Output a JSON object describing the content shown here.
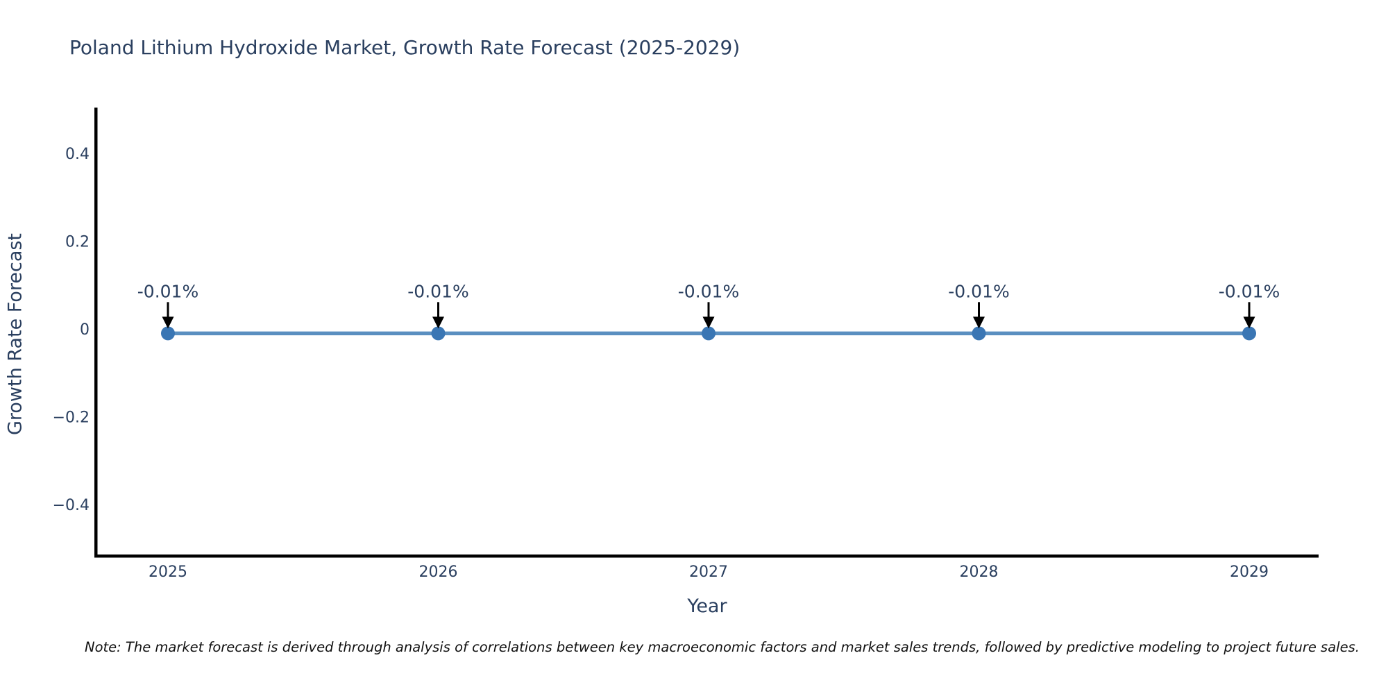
{
  "title": "Poland Lithium Hydroxide Market, Growth Rate Forecast (2025-2029)",
  "note": "Note: The market forecast is derived through analysis of correlations between key macroeconomic factors and market sales trends, followed by predictive modeling to project future sales.",
  "colors": {
    "text": "#2a3f5f",
    "line": "#5a8fc0",
    "marker": "#3a76b4",
    "arrow": "#000000",
    "axis": "#000000",
    "note_text": "#111111",
    "background": "#ffffff"
  },
  "chart_data": {
    "type": "line",
    "title": "Poland Lithium Hydroxide Market, Growth Rate Forecast (2025-2029)",
    "xlabel": "Year",
    "ylabel": "Growth Rate Forecast",
    "x": [
      2025,
      2026,
      2027,
      2028,
      2029
    ],
    "xtick_labels": [
      "2025",
      "2026",
      "2027",
      "2028",
      "2029"
    ],
    "series": [
      {
        "name": "Growth Rate Forecast",
        "values": [
          -0.01,
          -0.01,
          -0.01,
          -0.01,
          -0.01
        ]
      }
    ],
    "point_labels": [
      "-0.01%",
      "-0.01%",
      "-0.01%",
      "-0.01%",
      "-0.01%"
    ],
    "yticks": [
      0.4,
      0.2,
      0,
      -0.2,
      -0.4
    ],
    "ytick_labels": [
      "0.4",
      "0.2",
      "0",
      "−0.2",
      "−0.4"
    ],
    "ylim": [
      -0.52,
      0.5
    ],
    "xlim_years": [
      2024.73,
      2029.26
    ],
    "grid": false,
    "legend": false,
    "annotations_have_arrows": true
  }
}
